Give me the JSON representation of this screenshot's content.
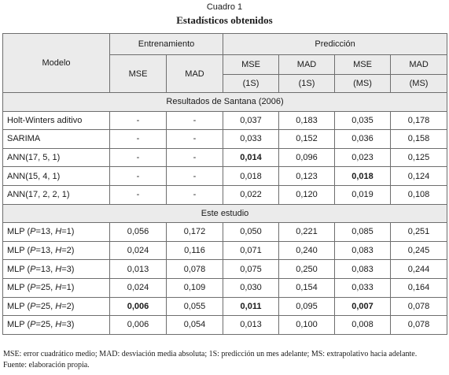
{
  "caption": {
    "number": "Cuadro 1",
    "title": "Estadísticos obtenidos"
  },
  "header": {
    "model": "Modelo",
    "training": "Entrenamiento",
    "prediction": "Predicción",
    "mse": "MSE",
    "mad": "MAD",
    "sub_1s": "(1S)",
    "sub_ms": "(MS)"
  },
  "sections": [
    {
      "title": "Resultados de Santana (2006)",
      "rows": [
        {
          "model": [
            {
              "t": "Holt-Winters aditivo"
            }
          ],
          "cells": [
            {
              "v": "-"
            },
            {
              "v": "-"
            },
            {
              "v": "0,037"
            },
            {
              "v": "0,183"
            },
            {
              "v": "0,035"
            },
            {
              "v": "0,178"
            }
          ]
        },
        {
          "model": [
            {
              "t": "SARIMA"
            }
          ],
          "cells": [
            {
              "v": "-"
            },
            {
              "v": "-"
            },
            {
              "v": "0,033"
            },
            {
              "v": "0,152"
            },
            {
              "v": "0,036"
            },
            {
              "v": "0,158"
            }
          ]
        },
        {
          "model": [
            {
              "t": "ANN(17, 5, 1)"
            }
          ],
          "cells": [
            {
              "v": "-"
            },
            {
              "v": "-"
            },
            {
              "v": "0,014",
              "b": true
            },
            {
              "v": "0,096"
            },
            {
              "v": "0,023"
            },
            {
              "v": "0,125"
            }
          ]
        },
        {
          "model": [
            {
              "t": "ANN(15, 4, 1)"
            }
          ],
          "cells": [
            {
              "v": "-"
            },
            {
              "v": "-"
            },
            {
              "v": "0,018"
            },
            {
              "v": "0,123"
            },
            {
              "v": "0,018",
              "b": true
            },
            {
              "v": "0,124"
            }
          ]
        },
        {
          "model": [
            {
              "t": "ANN(17, 2, 2, 1)"
            }
          ],
          "cells": [
            {
              "v": "-"
            },
            {
              "v": "-"
            },
            {
              "v": "0,022"
            },
            {
              "v": "0,120"
            },
            {
              "v": "0,019"
            },
            {
              "v": "0,108"
            }
          ]
        }
      ]
    },
    {
      "title": "Este estudio",
      "rows": [
        {
          "model": [
            {
              "t": "MLP ("
            },
            {
              "t": "P",
              "i": true
            },
            {
              "t": "=13, "
            },
            {
              "t": "H",
              "i": true
            },
            {
              "t": "=1)"
            }
          ],
          "cells": [
            {
              "v": "0,056"
            },
            {
              "v": "0,172"
            },
            {
              "v": "0,050"
            },
            {
              "v": "0,221"
            },
            {
              "v": "0,085"
            },
            {
              "v": "0,251"
            }
          ]
        },
        {
          "model": [
            {
              "t": "MLP ("
            },
            {
              "t": "P",
              "i": true
            },
            {
              "t": "=13, "
            },
            {
              "t": "H",
              "i": true
            },
            {
              "t": "=2)"
            }
          ],
          "cells": [
            {
              "v": "0,024"
            },
            {
              "v": "0,116"
            },
            {
              "v": "0,071"
            },
            {
              "v": "0,240"
            },
            {
              "v": "0,083"
            },
            {
              "v": "0,245"
            }
          ]
        },
        {
          "model": [
            {
              "t": "MLP ("
            },
            {
              "t": "P",
              "i": true
            },
            {
              "t": "=13, "
            },
            {
              "t": "H",
              "i": true
            },
            {
              "t": "=3)"
            }
          ],
          "cells": [
            {
              "v": "0,013"
            },
            {
              "v": "0,078"
            },
            {
              "v": "0,075"
            },
            {
              "v": "0,250"
            },
            {
              "v": "0,083"
            },
            {
              "v": "0,244"
            }
          ]
        },
        {
          "model": [
            {
              "t": "MLP ("
            },
            {
              "t": "P",
              "i": true
            },
            {
              "t": "=25, "
            },
            {
              "t": "H",
              "i": true
            },
            {
              "t": "=1)"
            }
          ],
          "cells": [
            {
              "v": "0,024"
            },
            {
              "v": "0,109"
            },
            {
              "v": "0,030"
            },
            {
              "v": "0,154"
            },
            {
              "v": "0,033"
            },
            {
              "v": "0,164"
            }
          ]
        },
        {
          "model": [
            {
              "t": "MLP ("
            },
            {
              "t": "P",
              "i": true
            },
            {
              "t": "=25, "
            },
            {
              "t": "H",
              "i": true
            },
            {
              "t": "=2)"
            }
          ],
          "cells": [
            {
              "v": "0,006",
              "b": true
            },
            {
              "v": "0,055"
            },
            {
              "v": "0,011",
              "b": true
            },
            {
              "v": "0,095"
            },
            {
              "v": "0,007",
              "b": true
            },
            {
              "v": "0,078"
            }
          ]
        },
        {
          "model": [
            {
              "t": "MLP ("
            },
            {
              "t": "P",
              "i": true
            },
            {
              "t": "=25, "
            },
            {
              "t": "H",
              "i": true
            },
            {
              "t": "=3)"
            }
          ],
          "cells": [
            {
              "v": "0,006"
            },
            {
              "v": "0,054"
            },
            {
              "v": "0,013"
            },
            {
              "v": "0,100"
            },
            {
              "v": "0,008"
            },
            {
              "v": "0,078"
            }
          ]
        }
      ]
    }
  ],
  "notes": {
    "abbreviations": "MSE: error cuadrático medio; MAD: desviación media absoluta; 1S: predicción un mes adelante; MS: extrapolativo hacia adelante.",
    "source": "Fuente: elaboración propia."
  }
}
